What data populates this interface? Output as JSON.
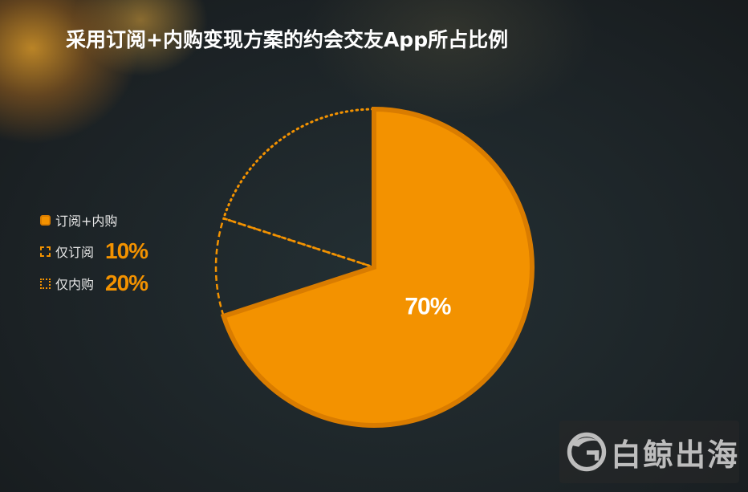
{
  "title": "采用订阅+内购变现方案的约会交友App所占比例",
  "chart_data": {
    "type": "pie",
    "title": "采用订阅+内购变现方案的约会交友App所占比例",
    "slices": [
      {
        "label": "订阅+内购",
        "value": 70,
        "display": "70%",
        "style": "solid",
        "color": "#f39200"
      },
      {
        "label": "仅订阅",
        "value": 10,
        "display": "10%",
        "style": "dashed",
        "color": "#f39200"
      },
      {
        "label": "仅内购",
        "value": 20,
        "display": "20%",
        "style": "dotted",
        "color": "#f39200"
      }
    ],
    "legend_position": "left",
    "start": "12-o'clock",
    "direction": "clockwise"
  },
  "legend": [
    {
      "label": "订阅+内购",
      "pct": ""
    },
    {
      "label": "仅订阅",
      "pct": "10%"
    },
    {
      "label": "仅内购",
      "pct": "20%"
    }
  ],
  "watermark": {
    "text": "白鲸出海",
    "icon": "whale-logo-icon"
  }
}
